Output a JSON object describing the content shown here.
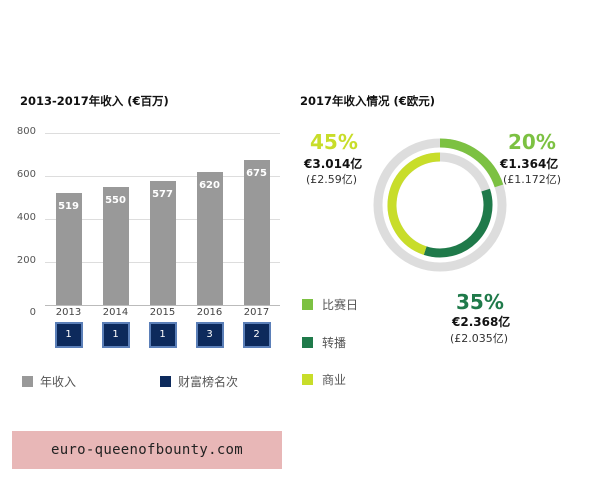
{
  "chart_data": [
    {
      "type": "bar",
      "title": "2013-2017年收入 (€百万)",
      "categories": [
        "2013",
        "2014",
        "2015",
        "2016",
        "2017"
      ],
      "values": [
        519,
        550,
        577,
        620,
        675
      ],
      "ylim": [
        0,
        800
      ],
      "yticks": [
        "0",
        "200",
        "400",
        "600",
        "800"
      ],
      "ranks": [
        "1",
        "1",
        "1",
        "3",
        "2"
      ],
      "legend": [
        {
          "label": "年收入",
          "color": "#999999"
        },
        {
          "label": "财富榜名次",
          "color": "#0d2a5c"
        }
      ]
    },
    {
      "type": "pie",
      "title": "2017年收入情况 (€欧元)",
      "slices": [
        {
          "label": "比赛日",
          "percent": "20%",
          "value": 20,
          "amount": "€1.364亿",
          "gbp": "(£1.172亿)",
          "color": "#7cc142"
        },
        {
          "label": "转播",
          "percent": "35%",
          "value": 35,
          "amount": "€2.368亿",
          "gbp": "(£2.035亿)",
          "color": "#1f7a4a"
        },
        {
          "label": "商业",
          "percent": "45%",
          "value": 45,
          "amount": "€3.014亿",
          "gbp": "(£2.59亿)",
          "color": "#c8dd2a"
        }
      ]
    }
  ],
  "watermark": "euro-queenofbounty.com"
}
